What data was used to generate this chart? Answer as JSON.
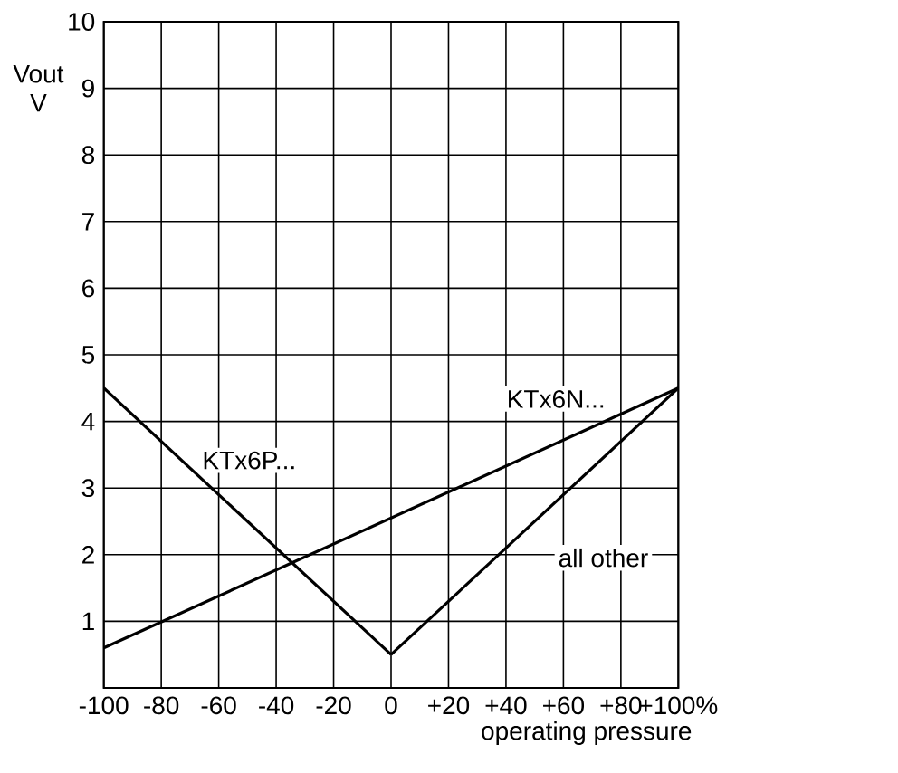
{
  "chart_data": {
    "type": "line",
    "xlabel": "operating pressure",
    "ylabel": "Vout V",
    "series": [
      {
        "name": "KTx6N...",
        "color": "#000000",
        "x": [
          -100,
          100
        ],
        "values": [
          0.6,
          4.5
        ]
      },
      {
        "name": "KTx6P...",
        "color": "#000000",
        "x": [
          -100,
          0
        ],
        "values": [
          4.5,
          0.5
        ]
      },
      {
        "name": "all other",
        "color": "#000000",
        "x": [
          0,
          100
        ],
        "values": [
          0.5,
          4.5
        ]
      }
    ],
    "xlim": [
      -100,
      100
    ],
    "ylim": [
      0,
      10
    ],
    "xticks": [
      -100,
      -80,
      -60,
      -40,
      -20,
      0,
      {
        "value": 20,
        "label": "+20"
      },
      {
        "value": 40,
        "label": "+40"
      },
      {
        "value": 60,
        "label": "+60"
      },
      {
        "value": 80,
        "label": "+80"
      },
      {
        "value": 100,
        "label": "+100%"
      }
    ],
    "yticks": [
      {
        "value": 0,
        "label": null
      },
      1,
      2,
      3,
      4,
      5,
      6,
      7,
      8,
      9,
      10
    ],
    "grid": true,
    "marker": "none",
    "line_style": "solid"
  }
}
